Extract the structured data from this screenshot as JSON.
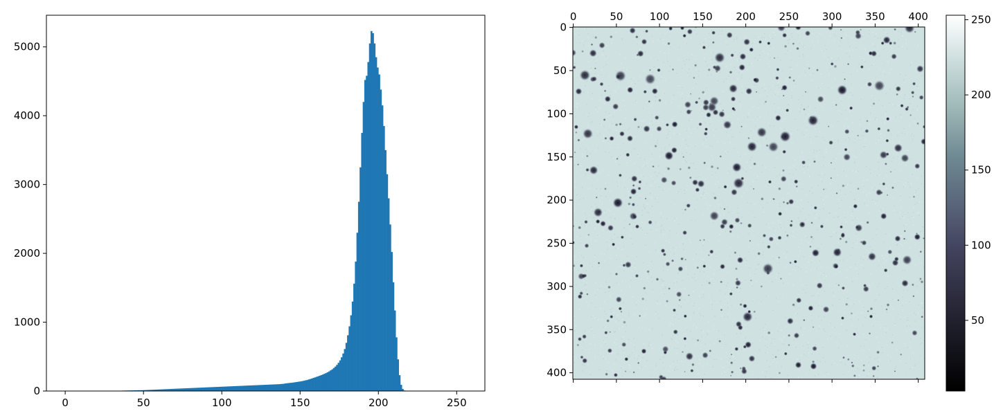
{
  "chart_data": [
    {
      "type": "bar",
      "kind": "histogram",
      "bin_start": 0,
      "bin_width": 1,
      "values": [
        0,
        0,
        0,
        0,
        0,
        0,
        0,
        0,
        0,
        0,
        1,
        1,
        1,
        1,
        1,
        1,
        1,
        1,
        1,
        1,
        2,
        2,
        2,
        2,
        2,
        2,
        2,
        2,
        2,
        2,
        4,
        4,
        4,
        5,
        5,
        5,
        6,
        6,
        7,
        7,
        8,
        8,
        9,
        9,
        10,
        10,
        11,
        11,
        12,
        12,
        13,
        14,
        15,
        16,
        17,
        18,
        19,
        20,
        21,
        22,
        23,
        24,
        25,
        26,
        27,
        28,
        29,
        30,
        31,
        32,
        33,
        34,
        35,
        36,
        37,
        38,
        39,
        40,
        41,
        42,
        43,
        44,
        45,
        46,
        47,
        48,
        49,
        50,
        51,
        52,
        53,
        54,
        55,
        56,
        57,
        58,
        59,
        60,
        61,
        62,
        63,
        64,
        65,
        66,
        67,
        68,
        69,
        70,
        71,
        72,
        73,
        74,
        75,
        76,
        77,
        78,
        79,
        80,
        81,
        82,
        83,
        84,
        85,
        86,
        87,
        88,
        89,
        90,
        91,
        92,
        93,
        94,
        95,
        96,
        97,
        98,
        99,
        101,
        103,
        105,
        110,
        112,
        115,
        118,
        120,
        123,
        126,
        130,
        133,
        137,
        140,
        145,
        150,
        155,
        160,
        168,
        175,
        182,
        190,
        198,
        206,
        214,
        222,
        231,
        240,
        250,
        260,
        272,
        285,
        300,
        315,
        335,
        355,
        380,
        410,
        445,
        490,
        545,
        610,
        700,
        810,
        940,
        1100,
        1300,
        1560,
        1880,
        2300,
        2750,
        3250,
        3750,
        4200,
        4520,
        4580,
        4780,
        5050,
        5230,
        5200,
        5050,
        4850,
        4700,
        4600,
        4380,
        4150,
        3850,
        3500,
        3150,
        2800,
        2420,
        2020,
        1580,
        1170,
        780,
        460,
        230,
        90,
        30,
        8,
        2,
        0,
        0,
        0,
        0,
        0,
        0,
        0,
        0,
        0,
        0,
        0,
        0
      ],
      "xlim": [
        -12,
        268
      ],
      "ylim": [
        0,
        5460
      ],
      "x_ticks": [
        "0",
        "50",
        "100",
        "150",
        "200",
        "250"
      ],
      "y_ticks": [
        "0",
        "1000",
        "2000",
        "3000",
        "4000",
        "5000"
      ],
      "color": "#1f77b4"
    },
    {
      "type": "heatmap",
      "kind": "image",
      "colormap": "bone",
      "width": 408,
      "height": 408,
      "xlim": [
        -0.5,
        407.5
      ],
      "ylim": [
        407.5,
        -0.5
      ],
      "x_ticks": [
        "0",
        "50",
        "100",
        "150",
        "200",
        "250",
        "300",
        "350",
        "400"
      ],
      "y_ticks": [
        "0",
        "50",
        "100",
        "150",
        "200",
        "250",
        "300",
        "350",
        "400"
      ],
      "background_value": 218,
      "colorbar": {
        "range": [
          3,
          253
        ],
        "ticks": [
          "50",
          "100",
          "150",
          "200",
          "250"
        ]
      }
    }
  ]
}
